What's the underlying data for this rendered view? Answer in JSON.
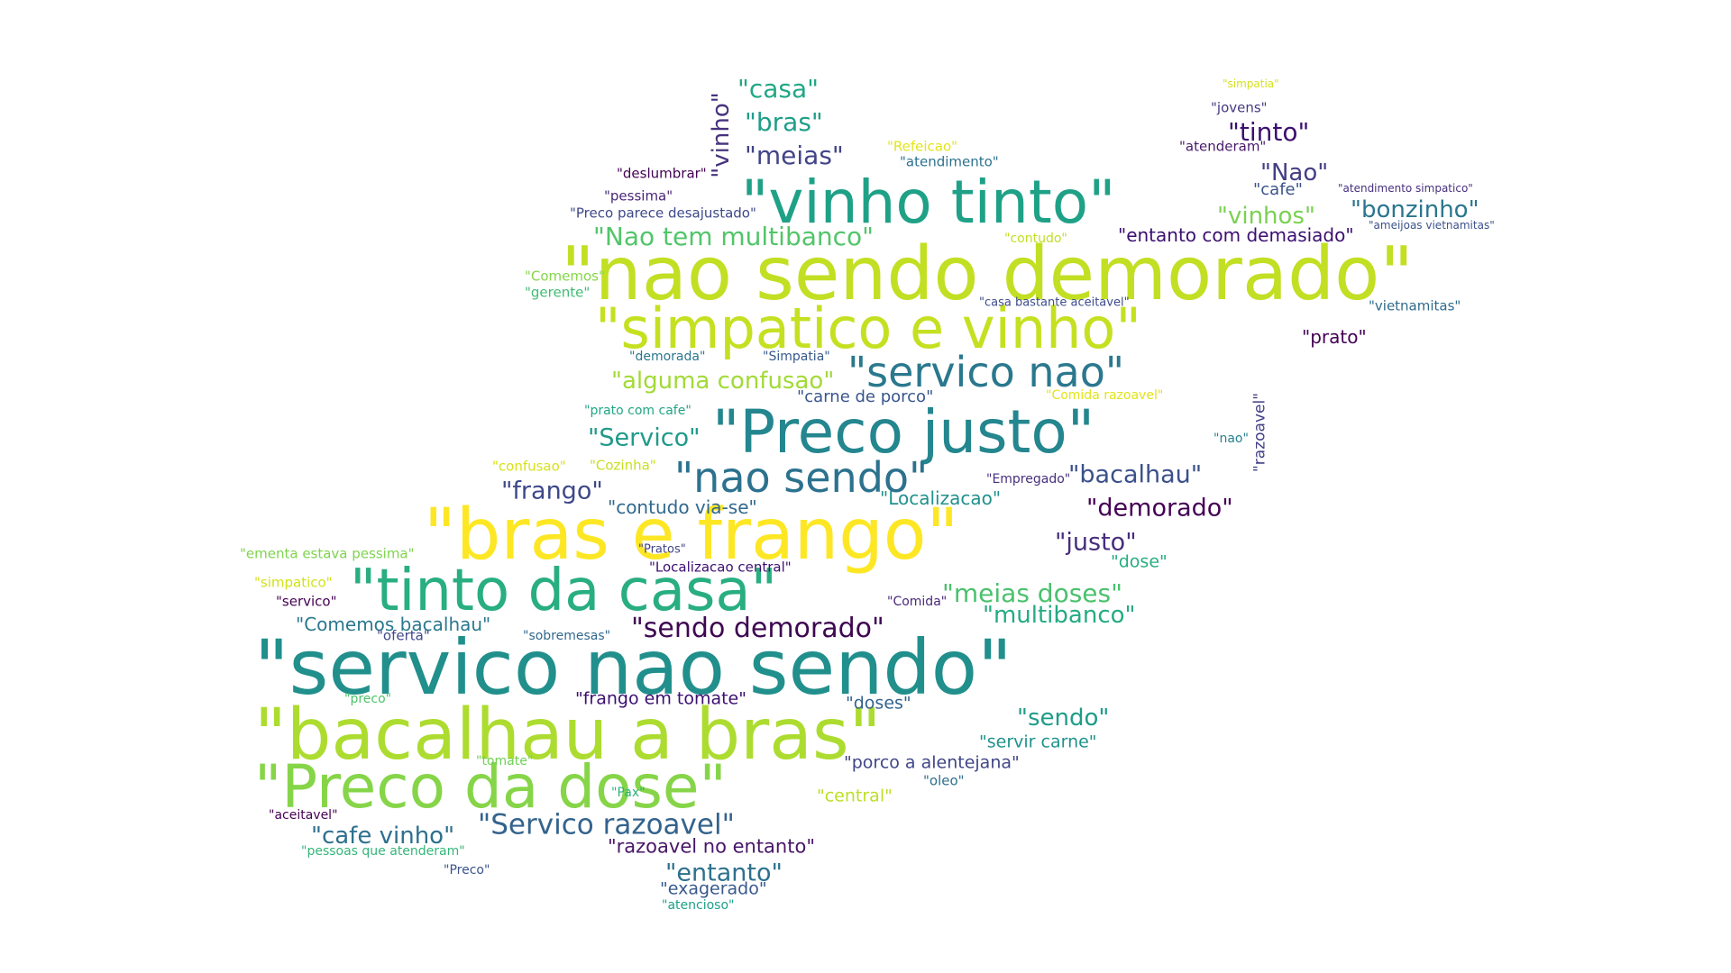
{
  "words": [
    {
      "text": "\"servico nao sendo\"",
      "color": "#218f8c"
    },
    {
      "text": "\"nao sendo demorado\"",
      "color": "#c2df23"
    },
    {
      "text": "\"bacalhau a bras\"",
      "color": "#addc30"
    },
    {
      "text": "\"bras e frango\"",
      "color": "#fde725"
    },
    {
      "text": "\"vinho tinto\"",
      "color": "#1fa187"
    },
    {
      "text": "\"Preco justo\"",
      "color": "#24868e"
    },
    {
      "text": "\"Preco da dose\"",
      "color": "#86d549"
    },
    {
      "text": "\"tinto da casa\"",
      "color": "#28ae80"
    },
    {
      "text": "\"simpatico e vinho\"",
      "color": "#c5e021"
    },
    {
      "text": "\"servico nao\"",
      "color": "#2a788e"
    },
    {
      "text": "\"nao sendo\"",
      "color": "#2c728e"
    },
    {
      "text": "\"sendo demorado\"",
      "color": "#3e0751"
    },
    {
      "text": "\"Servico razoavel\"",
      "color": "#33638d"
    },
    {
      "text": "\"bacalhau\"",
      "color": "#3b518b"
    },
    {
      "text": "\"justo\"",
      "color": "#472e7c"
    },
    {
      "text": "\"demorado\"",
      "color": "#440154"
    },
    {
      "text": "\"meias doses\"",
      "color": "#4ac16d"
    },
    {
      "text": "\"multibanco\"",
      "color": "#25ab82"
    },
    {
      "text": "\"Nao tem multibanco\"",
      "color": "#52c569"
    },
    {
      "text": "\"alguma confusao\"",
      "color": "#a2da37"
    },
    {
      "text": "\"frango\"",
      "color": "#3e4989"
    },
    {
      "text": "\"casa\"",
      "color": "#22a785"
    },
    {
      "text": "\"bras\"",
      "color": "#1f9e89"
    },
    {
      "text": "\"meias\"",
      "color": "#414487"
    },
    {
      "text": "\"tinto\"",
      "color": "#3b0f70"
    },
    {
      "text": "\"vinho\"",
      "color": "#46337e"
    },
    {
      "text": "\"Servico\"",
      "color": "#1f9a8a"
    },
    {
      "text": "\"entanto\"",
      "color": "#2c718e"
    },
    {
      "text": "\"sendo\"",
      "color": "#1e9c89"
    },
    {
      "text": "\"cafe vinho\"",
      "color": "#2d708e"
    },
    {
      "text": "\"bonzinho\"",
      "color": "#2a768e"
    },
    {
      "text": "\"vinhos\"",
      "color": "#7ad151"
    },
    {
      "text": "\"Nao\"",
      "color": "#433e85"
    },
    {
      "text": "\"prato\"",
      "color": "#440154"
    },
    {
      "text": "\"razoavel no entanto\"",
      "color": "#481668"
    },
    {
      "text": "\"entanto com demasiado\"",
      "color": "#3b0f70"
    },
    {
      "text": "\"contudo via-se\"",
      "color": "#31688e"
    },
    {
      "text": "\"Localizacao\"",
      "color": "#21918c"
    },
    {
      "text": "\"frango em tomate\"",
      "color": "#3b0f70"
    },
    {
      "text": "\"Comemos bacalhau\"",
      "color": "#2a788e"
    },
    {
      "text": "\"carne de porco\"",
      "color": "#39558c"
    },
    {
      "text": "\"razoavel\"",
      "color": "#424186"
    },
    {
      "text": "\"servir carne\"",
      "color": "#20928c"
    },
    {
      "text": "\"porco a alentejana\"",
      "color": "#404688"
    },
    {
      "text": "\"exagerado\"",
      "color": "#38598c"
    },
    {
      "text": "\"doses\"",
      "color": "#33638d"
    },
    {
      "text": "\"dose\"",
      "color": "#26ad81"
    },
    {
      "text": "\"central\"",
      "color": "#bddf26"
    },
    {
      "text": "\"vietnamitas\"",
      "color": "#2f6b8e"
    },
    {
      "text": "\"cafe\"",
      "color": "#3b528b"
    },
    {
      "text": "\"jovens\"",
      "color": "#453882"
    },
    {
      "text": "\"atenderam\"",
      "color": "#481a6c"
    },
    {
      "text": "\"atendimento\"",
      "color": "#2c728e"
    },
    {
      "text": "\"Refeicao\"",
      "color": "#e5e419"
    },
    {
      "text": "\"deslumbrar\"",
      "color": "#440154"
    },
    {
      "text": "\"pessima\"",
      "color": "#482677"
    },
    {
      "text": "\"Preco parece desajustado\"",
      "color": "#3e4989"
    },
    {
      "text": "\"contudo\"",
      "color": "#c0df25"
    },
    {
      "text": "\"Comemos\"",
      "color": "#86d549"
    },
    {
      "text": "\"gerente\"",
      "color": "#3fbc73"
    },
    {
      "text": "\"casa bastante aceitavel\"",
      "color": "#3e4c8a"
    },
    {
      "text": "\"demorada\"",
      "color": "#2a788e"
    },
    {
      "text": "\"Simpatia\"",
      "color": "#375a8c"
    },
    {
      "text": "\"Comida razoavel\"",
      "color": "#e2e418"
    },
    {
      "text": "\"prato com cafe\"",
      "color": "#21a685"
    },
    {
      "text": "\"nao\"",
      "color": "#26828e"
    },
    {
      "text": "\"confusao\"",
      "color": "#d8e219"
    },
    {
      "text": "\"Cozinha\"",
      "color": "#c8e020"
    },
    {
      "text": "\"Empregado\"",
      "color": "#472f7d"
    },
    {
      "text": "\"ementa estava pessima\"",
      "color": "#7fd34e"
    },
    {
      "text": "\"Pratos\"",
      "color": "#414487"
    },
    {
      "text": "\"Localizacao central\"",
      "color": "#3b0f70"
    },
    {
      "text": "\"simpatico\"",
      "color": "#d2e21b"
    },
    {
      "text": "\"servico\"",
      "color": "#440154"
    },
    {
      "text": "\"Comida\"",
      "color": "#482878"
    },
    {
      "text": "\"oferta\"",
      "color": "#3f4889"
    },
    {
      "text": "\"sobremesas\"",
      "color": "#31688e"
    },
    {
      "text": "\"preco\"",
      "color": "#4ec36b"
    },
    {
      "text": "\"tomate\"",
      "color": "#70cf57"
    },
    {
      "text": "\"Pax\"",
      "color": "#2db27d"
    },
    {
      "text": "\"oleo\"",
      "color": "#2e6e8e"
    },
    {
      "text": "\"aceitavel\"",
      "color": "#440154"
    },
    {
      "text": "\"pessoas que atenderam\"",
      "color": "#34b679"
    },
    {
      "text": "\"Preco\"",
      "color": "#3a548c"
    },
    {
      "text": "\"atencioso\"",
      "color": "#1fa088"
    },
    {
      "text": "\"simpatia\"",
      "color": "#d5e21a"
    },
    {
      "text": "\"atendimento simpatico\"",
      "color": "#46307e"
    },
    {
      "text": "\"ameijoas vietnamitas\"",
      "color": "#3b528b"
    }
  ]
}
